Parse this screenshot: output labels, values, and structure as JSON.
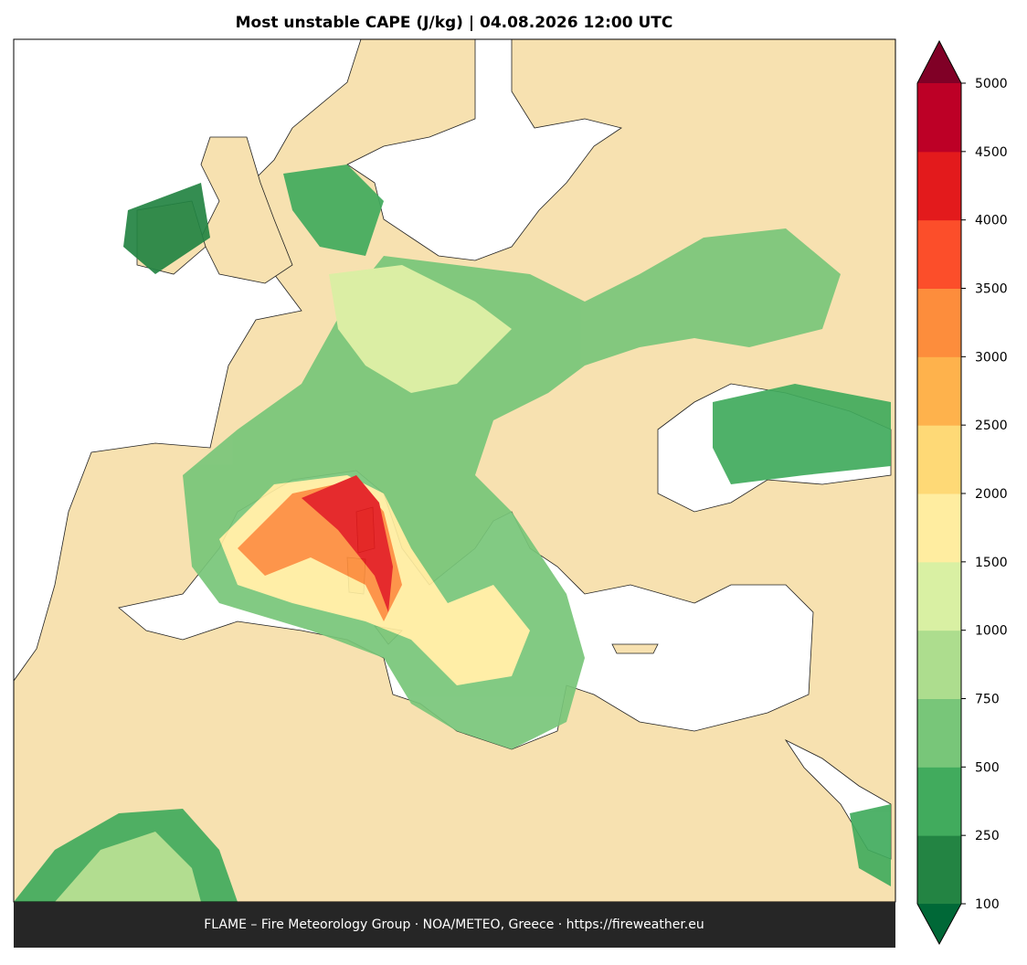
{
  "title": "Most unstable CAPE (J/kg)  |  04.08.2026 12:00 UTC",
  "footer": "FLAME – Fire Meteorology Group · NOA/METEO, Greece · https://fireweather.eu",
  "colorbar": {
    "levels": [
      100,
      250,
      500,
      750,
      1000,
      1500,
      2000,
      2500,
      3000,
      3500,
      4000,
      4500,
      5000
    ],
    "colors": [
      "#238443",
      "#41ab5d",
      "#78c679",
      "#addd8e",
      "#d9f0a3",
      "#ffeda0",
      "#fed976",
      "#feb24c",
      "#fd8d3c",
      "#fc4e2a",
      "#e31a1c",
      "#bd0026"
    ],
    "under_color": "#006837",
    "over_color": "#800026"
  }
}
